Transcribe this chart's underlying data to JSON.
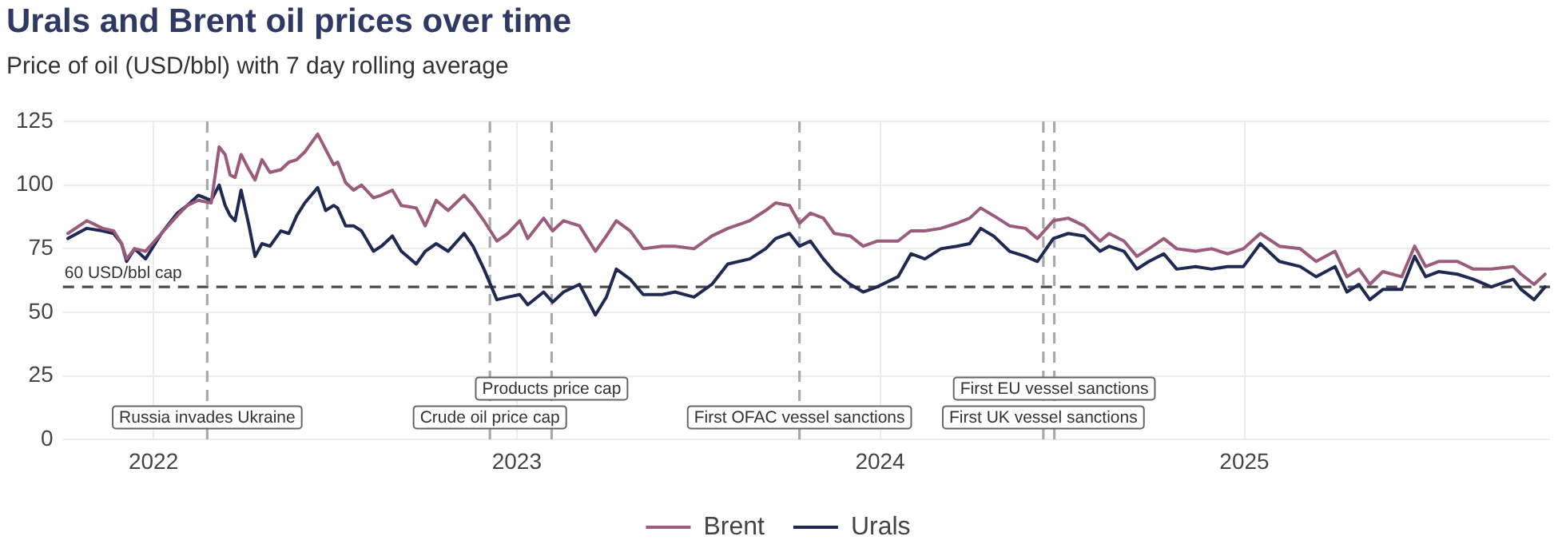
{
  "chart_data": {
    "type": "line",
    "title": "Urals and Brent oil prices over time",
    "subtitle": "Price of oil (USD/bbl) with 7 day rolling average",
    "x": [
      "2021-10-07",
      "2021-10-26",
      "2021-11-11",
      "2021-11-22",
      "2021-11-30",
      "2021-12-05",
      "2021-12-13",
      "2021-12-24",
      "2022-01-09",
      "2022-01-25",
      "2022-02-04",
      "2022-02-15",
      "2022-02-28",
      "2022-03-08",
      "2022-03-14",
      "2022-03-19",
      "2022-03-24",
      "2022-03-30",
      "2022-04-07",
      "2022-04-13",
      "2022-04-20",
      "2022-04-28",
      "2022-05-09",
      "2022-05-17",
      "2022-05-25",
      "2022-06-02",
      "2022-06-15",
      "2022-06-23",
      "2022-07-01",
      "2022-07-05",
      "2022-07-13",
      "2022-07-21",
      "2022-07-29",
      "2022-08-10",
      "2022-08-18",
      "2022-08-29",
      "2022-09-07",
      "2022-09-22",
      "2022-10-01",
      "2022-10-12",
      "2022-10-24",
      "2022-11-09",
      "2022-11-18",
      "2022-11-29",
      "2022-12-12",
      "2022-12-23",
      "2023-01-04",
      "2023-01-12",
      "2023-01-28",
      "2023-02-06",
      "2023-02-17",
      "2023-03-05",
      "2023-03-21",
      "2023-04-01",
      "2023-04-11",
      "2023-04-25",
      "2023-05-08",
      "2023-05-27",
      "2023-06-09",
      "2023-06-28",
      "2023-07-16",
      "2023-08-01",
      "2023-08-23",
      "2023-09-08",
      "2023-09-18",
      "2023-10-02",
      "2023-10-12",
      "2023-10-23",
      "2023-11-05",
      "2023-11-16",
      "2023-12-02",
      "2023-12-15",
      "2023-12-29",
      "2024-01-19",
      "2024-02-01",
      "2024-02-15",
      "2024-03-02",
      "2024-03-18",
      "2024-03-31",
      "2024-04-11",
      "2024-04-24",
      "2024-05-10",
      "2024-05-26",
      "2024-06-07",
      "2024-06-23",
      "2024-07-08",
      "2024-07-24",
      "2024-08-09",
      "2024-08-18",
      "2024-09-02",
      "2024-09-15",
      "2024-09-27",
      "2024-10-12",
      "2024-10-25",
      "2024-11-13",
      "2024-11-29",
      "2024-12-15",
      "2024-12-31",
      "2025-01-17",
      "2025-02-05",
      "2025-02-26",
      "2025-03-14",
      "2025-04-02",
      "2025-04-14",
      "2025-04-26",
      "2025-05-07",
      "2025-05-20",
      "2025-06-08",
      "2025-06-21",
      "2025-07-02",
      "2025-07-15",
      "2025-08-03",
      "2025-08-19",
      "2025-09-06",
      "2025-09-28",
      "2025-10-06",
      "2025-10-19",
      "2025-10-30"
    ],
    "series": [
      {
        "name": "Brent",
        "color": "#9b5b7c",
        "values": [
          81,
          86,
          83,
          82,
          77,
          71,
          75,
          74,
          81,
          88,
          92,
          94,
          93,
          115,
          112,
          104,
          103,
          112,
          106,
          102,
          110,
          105,
          106,
          109,
          110,
          113,
          120,
          114,
          108,
          109,
          101,
          98,
          100,
          95,
          96,
          98,
          92,
          91,
          84,
          94,
          90,
          96,
          92,
          86,
          78,
          81,
          86,
          79,
          87,
          82,
          86,
          84,
          74,
          80,
          86,
          82,
          75,
          76,
          76,
          75,
          80,
          83,
          86,
          90,
          93,
          92,
          85,
          89,
          87,
          81,
          80,
          76,
          78,
          78,
          82,
          82,
          83,
          85,
          87,
          91,
          88,
          84,
          83,
          79,
          86,
          87,
          84,
          78,
          81,
          78,
          72,
          75,
          79,
          75,
          74,
          75,
          73,
          75,
          81,
          76,
          75,
          70,
          74,
          64,
          67,
          61,
          66,
          64,
          76,
          68,
          70,
          70,
          67,
          67,
          68,
          65,
          61,
          65
        ]
      },
      {
        "name": "Urals",
        "color": "#1e2a52",
        "values": [
          79,
          83,
          82,
          81,
          77,
          70,
          75,
          71,
          81,
          89,
          92,
          96,
          94,
          100,
          92,
          88,
          86,
          98,
          84,
          72,
          77,
          76,
          82,
          81,
          88,
          93,
          99,
          90,
          92,
          91,
          84,
          84,
          82,
          74,
          76,
          80,
          74,
          69,
          74,
          77,
          74,
          81,
          76,
          67,
          55,
          56,
          57,
          53,
          58,
          54,
          58,
          61,
          49,
          56,
          67,
          63,
          57,
          57,
          58,
          56,
          61,
          69,
          71,
          75,
          79,
          81,
          76,
          78,
          71,
          66,
          61,
          58,
          60,
          64,
          73,
          71,
          75,
          76,
          77,
          83,
          80,
          74,
          72,
          70,
          79,
          81,
          80,
          74,
          76,
          74,
          67,
          70,
          73,
          67,
          68,
          67,
          68,
          68,
          77,
          70,
          68,
          64,
          68,
          58,
          61,
          55,
          59,
          59,
          72,
          64,
          66,
          65,
          63,
          60,
          63,
          59,
          55,
          60
        ]
      }
    ],
    "xlim": [
      "2021-10-02",
      "2025-11-04"
    ],
    "xticks": [
      {
        "value": "2022-01-01",
        "label": "2022"
      },
      {
        "value": "2023-01-01",
        "label": "2023"
      },
      {
        "value": "2024-01-01",
        "label": "2024"
      },
      {
        "value": "2025-01-01",
        "label": "2025"
      }
    ],
    "ylim": [
      0,
      125
    ],
    "yticks": [
      0,
      25,
      50,
      75,
      100,
      125
    ],
    "ref_lines": [
      {
        "axis": "y",
        "value": 60,
        "label": "60 USD/bbl cap",
        "color": "#4a4a4a",
        "line_style": "dashed"
      },
      {
        "axis": "x",
        "value": "2022-02-24",
        "label": "Russia invades Ukraine",
        "color": "#a9a9a9",
        "line_style": "dashed"
      },
      {
        "axis": "x",
        "value": "2022-12-05",
        "label": "Crude oil price cap",
        "color": "#a9a9a9",
        "line_style": "dashed"
      },
      {
        "axis": "x",
        "value": "2023-02-05",
        "label": "Products price cap",
        "color": "#a9a9a9",
        "line_style": "dashed"
      },
      {
        "axis": "x",
        "value": "2023-10-12",
        "label": "First OFAC vessel sanctions",
        "color": "#a9a9a9",
        "line_style": "dashed"
      },
      {
        "axis": "x",
        "value": "2024-06-13",
        "label": "First UK vessel sanctions",
        "color": "#a9a9a9",
        "line_style": "dashed"
      },
      {
        "axis": "x",
        "value": "2024-06-24",
        "label": "First EU vessel sanctions",
        "color": "#a9a9a9",
        "line_style": "dashed"
      }
    ],
    "grid": true,
    "legend": "bottom",
    "marker": "none",
    "line_style": "solid"
  }
}
